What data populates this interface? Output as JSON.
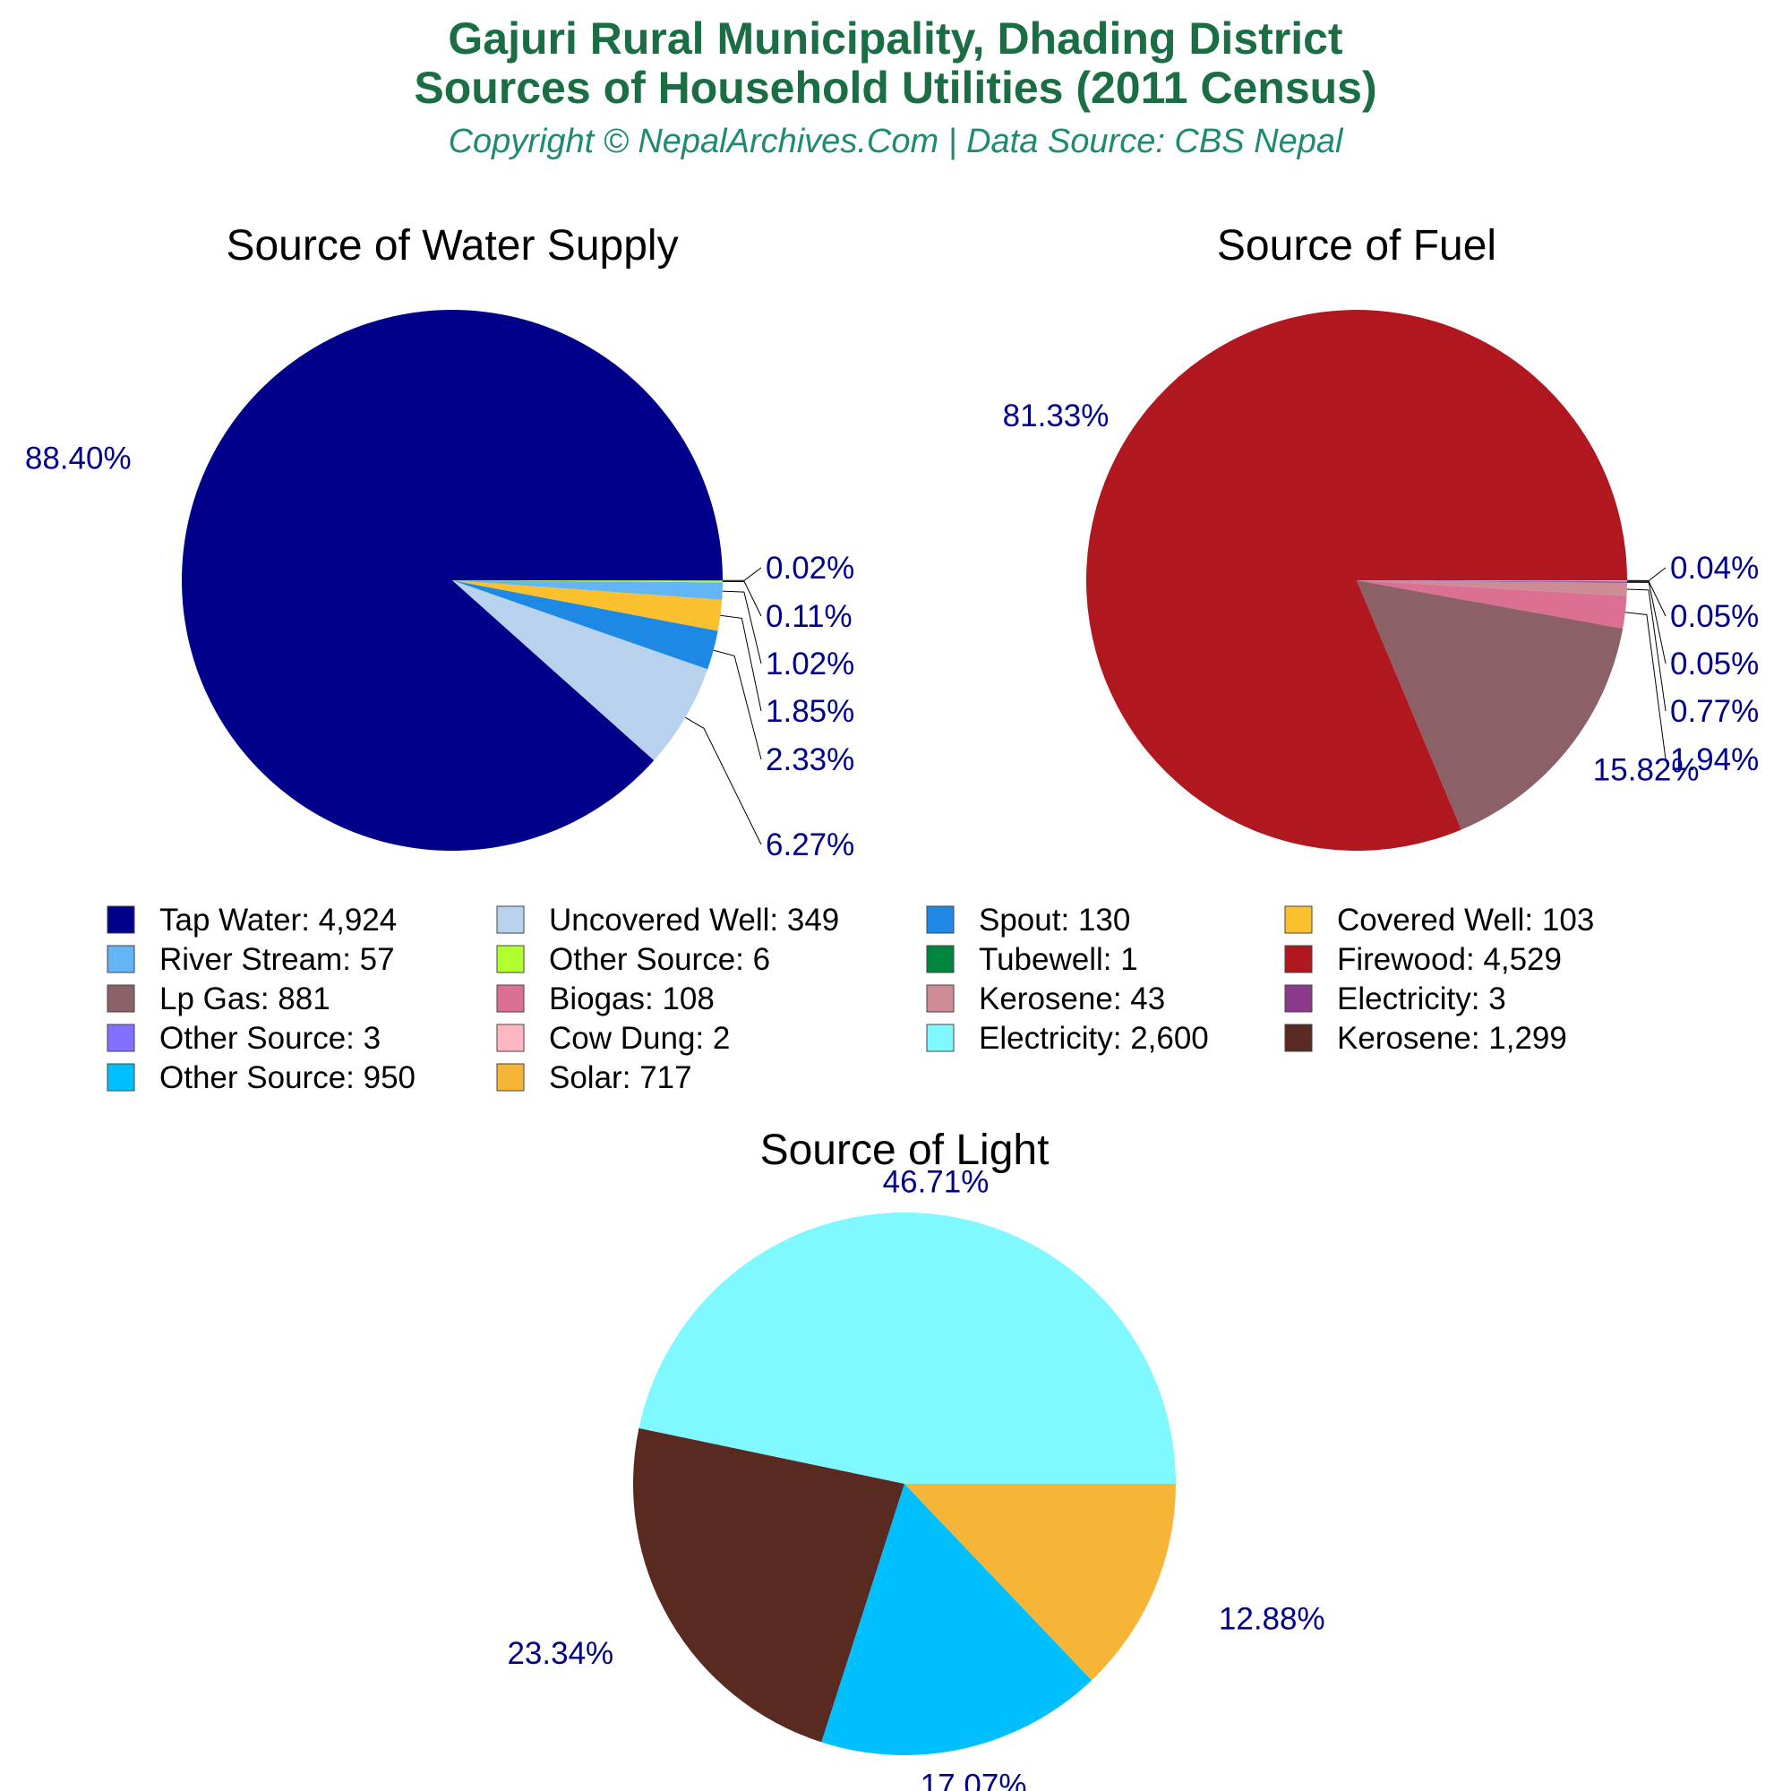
{
  "header": {
    "title_line1": "Gajuri Rural Municipality, Dhading District",
    "title_line2": "Sources of Household Utilities (2011 Census)",
    "subtitle": "Copyright © NepalArchives.Com | Data Source: CBS Nepal"
  },
  "chart_data": [
    {
      "type": "pie",
      "title": "Source of Water Supply",
      "slices": [
        {
          "label": "Tap Water",
          "value": 4924,
          "percent": "88.40%",
          "color": "#00008b"
        },
        {
          "label": "Uncovered Well",
          "value": 349,
          "percent": "6.27%",
          "color": "#b8d2ee"
        },
        {
          "label": "Spout",
          "value": 130,
          "percent": "2.33%",
          "color": "#1e88e5"
        },
        {
          "label": "Covered Well",
          "value": 103,
          "percent": "1.85%",
          "color": "#fbc02d"
        },
        {
          "label": "River Stream",
          "value": 57,
          "percent": "1.02%",
          "color": "#64b5f6"
        },
        {
          "label": "Other Source",
          "value": 6,
          "percent": "0.11%",
          "color": "#b2ff2e"
        },
        {
          "label": "Tubewell",
          "value": 1,
          "percent": "0.02%",
          "color": "#00853f"
        }
      ]
    },
    {
      "type": "pie",
      "title": "Source of Fuel",
      "slices": [
        {
          "label": "Firewood",
          "value": 4529,
          "percent": "81.33%",
          "color": "#b0171f"
        },
        {
          "label": "Lp Gas",
          "value": 881,
          "percent": "15.82%",
          "color": "#8b6066"
        },
        {
          "label": "Biogas",
          "value": 108,
          "percent": "1.94%",
          "color": "#db7093"
        },
        {
          "label": "Kerosene",
          "value": 43,
          "percent": "0.77%",
          "color": "#cd8c95"
        },
        {
          "label": "Electricity",
          "value": 3,
          "percent": "0.05%",
          "color": "#8b3a8b"
        },
        {
          "label": "Other Source",
          "value": 3,
          "percent": "0.05%",
          "color": "#8470ff"
        },
        {
          "label": "Cow Dung",
          "value": 2,
          "percent": "0.04%",
          "color": "#ffb6c1"
        }
      ]
    },
    {
      "type": "pie",
      "title": "Source of Light",
      "slices": [
        {
          "label": "Electricity",
          "value": 2600,
          "percent": "46.71%",
          "color": "#7ff9ff"
        },
        {
          "label": "Kerosene",
          "value": 1299,
          "percent": "23.34%",
          "color": "#582a20"
        },
        {
          "label": "Other Source",
          "value": 950,
          "percent": "17.07%",
          "color": "#00bfff"
        },
        {
          "label": "Solar",
          "value": 717,
          "percent": "12.88%",
          "color": "#f7b538"
        }
      ]
    }
  ],
  "legend": {
    "items": [
      {
        "text": "Tap Water: 4,924",
        "color": "#00008b"
      },
      {
        "text": "Uncovered Well: 349",
        "color": "#b8d2ee"
      },
      {
        "text": "Spout: 130",
        "color": "#1e88e5"
      },
      {
        "text": "Covered Well: 103",
        "color": "#fbc02d"
      },
      {
        "text": "River Stream: 57",
        "color": "#64b5f6"
      },
      {
        "text": "Other Source: 6",
        "color": "#b2ff2e"
      },
      {
        "text": "Tubewell: 1",
        "color": "#00853f"
      },
      {
        "text": "Firewood: 4,529",
        "color": "#b0171f"
      },
      {
        "text": "Lp Gas: 881",
        "color": "#8b6066"
      },
      {
        "text": "Biogas: 108",
        "color": "#db7093"
      },
      {
        "text": "Kerosene: 43",
        "color": "#cd8c95"
      },
      {
        "text": "Electricity: 3",
        "color": "#8b3a8b"
      },
      {
        "text": "Other Source: 3",
        "color": "#8470ff"
      },
      {
        "text": "Cow Dung: 2",
        "color": "#ffb6c1"
      },
      {
        "text": "Electricity: 2,600",
        "color": "#7ff9ff"
      },
      {
        "text": "Kerosene: 1,299",
        "color": "#582a20"
      },
      {
        "text": "Other Source: 950",
        "color": "#00bfff"
      },
      {
        "text": "Solar: 717",
        "color": "#f7b538"
      }
    ]
  }
}
